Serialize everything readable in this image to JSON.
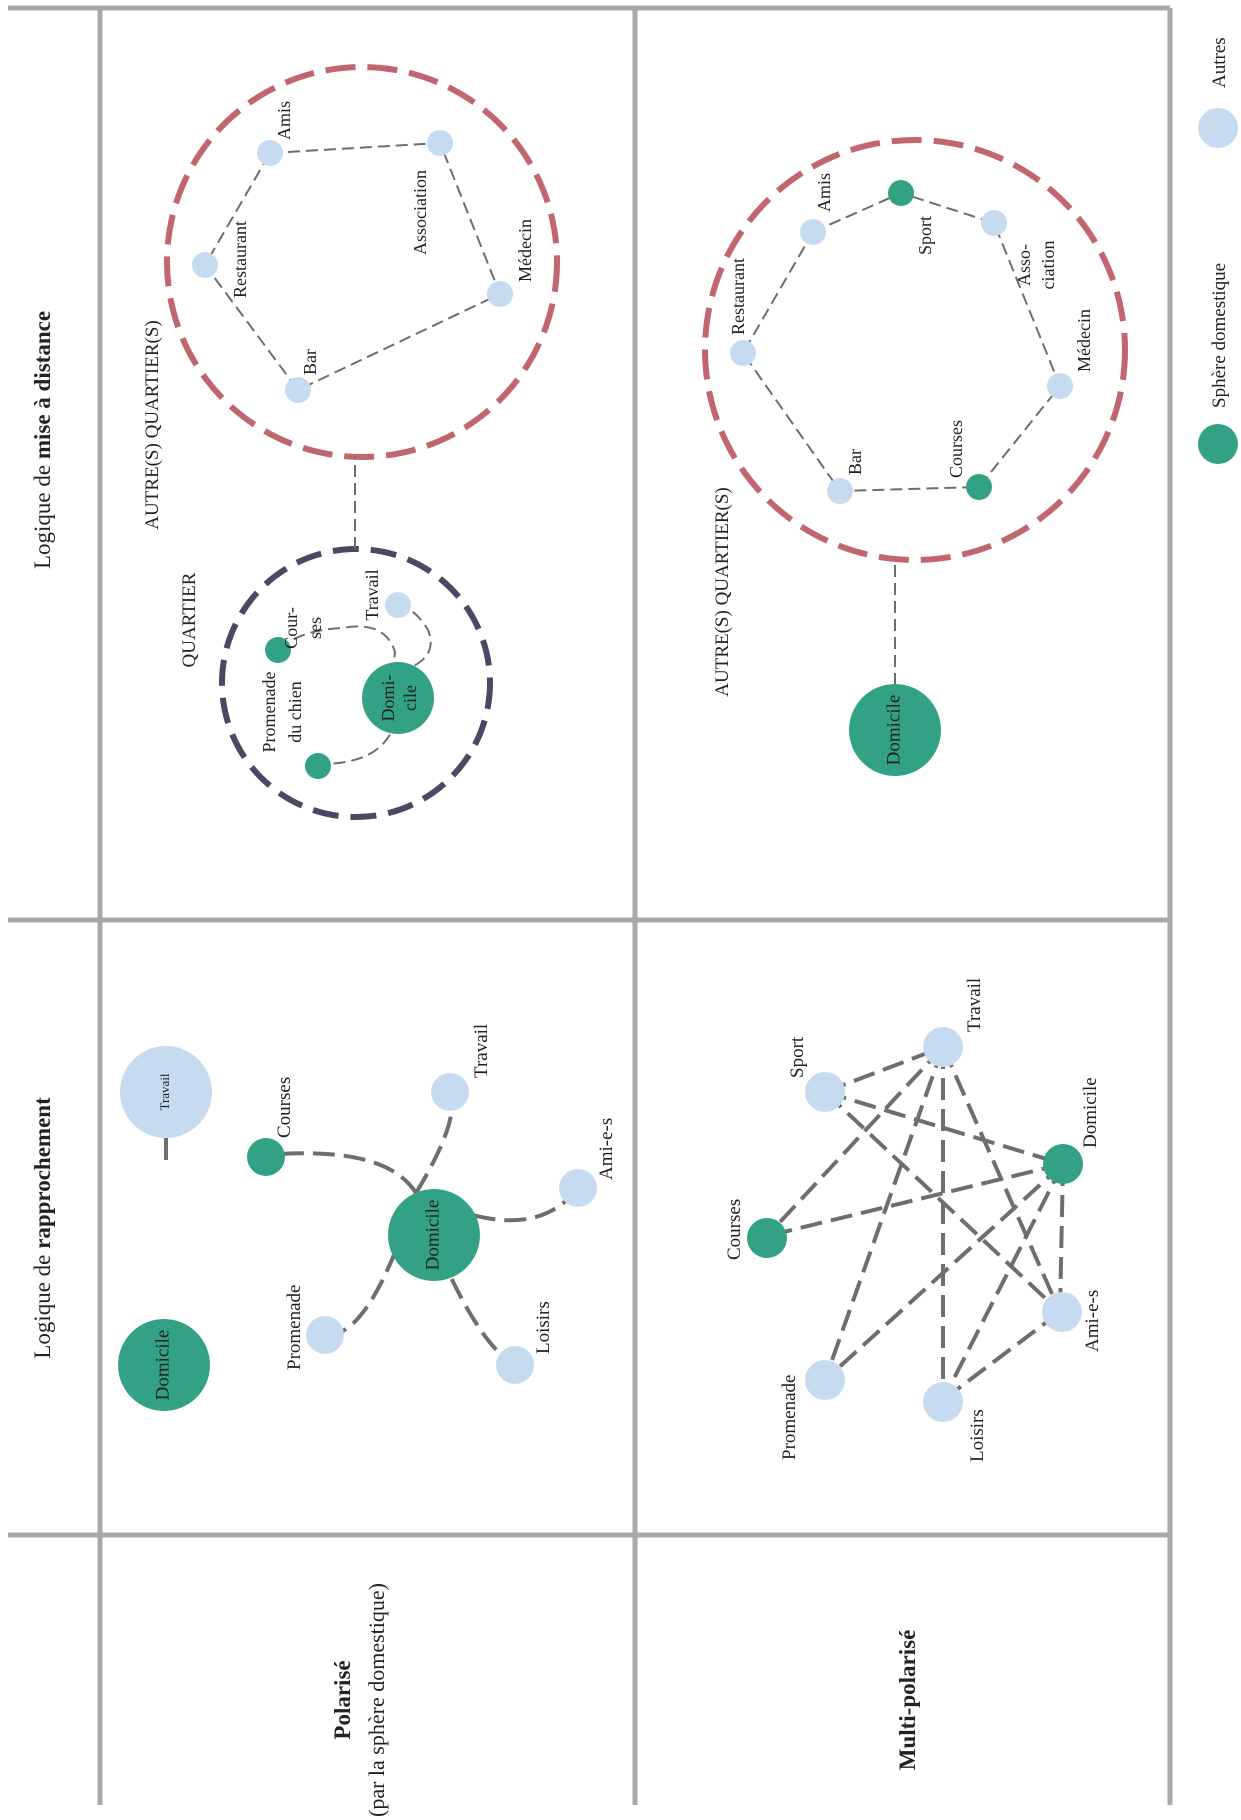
{
  "colors": {
    "domestic": "#33a284",
    "other": "#c7dbf0",
    "ring_local": "#4a4862",
    "ring_far": "#c1666f",
    "grid": "#a8a8a8",
    "edge": "#6e6e6e"
  },
  "headers": {
    "rapprochement_prefix": "Logique de ",
    "rapprochement_bold": "rapprochement",
    "distance_prefix": "Logique de ",
    "distance_bold": "mise à distance"
  },
  "rows": {
    "polarise_title": "Polarisé",
    "polarise_subtitle": "(par la sphère domestique)",
    "multi_title": "Multi-polarisé"
  },
  "rapprochement_polarise": {
    "legend_domicile": "Domicile",
    "legend_travail": "Travail",
    "center": "Domicile",
    "nodes": [
      "Courses",
      "Travail",
      "Ami-e-s",
      "Loisirs",
      "Promenade"
    ]
  },
  "rapprochement_multi": {
    "nodes": [
      "Sport",
      "Travail",
      "Domicile",
      "Courses",
      "Promenade",
      "Loisirs",
      "Ami-e-s"
    ]
  },
  "distance_polarise": {
    "quartier_label": "QUARTIER",
    "autres_label": "AUTRE(S) QUARTIER(S)",
    "domicile_line1": "Domi-",
    "domicile_line2": "cile",
    "courses_line1": "Cour-",
    "courses_line2": "ses",
    "travail": "Travail",
    "promenade_line1": "Promenade",
    "promenade_line2": "du chien",
    "far_nodes": [
      "Amis",
      "Association",
      "Médecin",
      "Bar",
      "Restaurant"
    ]
  },
  "distance_multi": {
    "autres_label": "AUTRE(S) QUARTIER(S)",
    "domicile": "Domicile",
    "amis": "Amis",
    "sport": "Sport",
    "asso_line1": "Asso-",
    "asso_line2": "ciation",
    "medecin": "Médecin",
    "courses": "Courses",
    "bar": "Bar",
    "restaurant": "Restaurant"
  },
  "legend": {
    "domestic": "Sphère domestique",
    "other": "Autres"
  }
}
